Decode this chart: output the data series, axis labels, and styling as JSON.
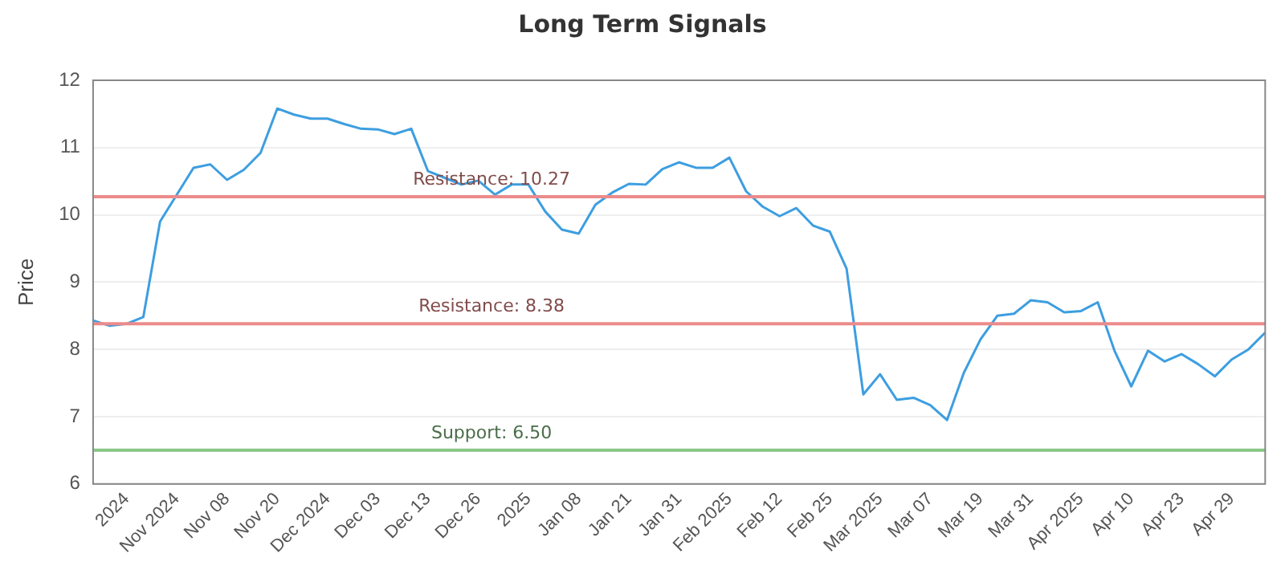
{
  "chart_data": {
    "type": "line",
    "title": "Long Term Signals",
    "ylabel": "Price",
    "categories": [
      null,
      null,
      "2024",
      null,
      null,
      "Nov 2024",
      null,
      null,
      "Nov 08",
      null,
      null,
      "Nov 20",
      null,
      null,
      "Dec 2024",
      null,
      null,
      "Dec 03",
      null,
      null,
      "Dec 13",
      null,
      null,
      "Dec 26",
      null,
      null,
      "2025",
      null,
      null,
      "Jan 08",
      null,
      null,
      "Jan 21",
      null,
      null,
      "Jan 31",
      null,
      null,
      "Feb 2025",
      null,
      null,
      "Feb 12",
      null,
      null,
      "Feb 25",
      null,
      null,
      "Mar 2025",
      null,
      null,
      "Mar 07",
      null,
      null,
      "Mar 19",
      null,
      null,
      "Mar 31",
      null,
      null,
      "Apr 2025",
      null,
      null,
      "Apr 10",
      null,
      null,
      "Apr 23",
      null,
      null,
      "Apr 29",
      null,
      null
    ],
    "series": [
      {
        "color": "#3d9ee0",
        "values": [
          8.43,
          8.35,
          8.38,
          8.48,
          9.9,
          10.3,
          10.7,
          10.75,
          10.52,
          10.67,
          10.92,
          11.58,
          11.49,
          11.43,
          11.43,
          11.35,
          11.28,
          11.27,
          11.2,
          11.28,
          10.65,
          10.55,
          10.45,
          10.51,
          10.3,
          10.45,
          10.45,
          10.05,
          9.78,
          9.72,
          10.15,
          10.33,
          10.46,
          10.45,
          10.68,
          10.78,
          10.7,
          10.7,
          10.85,
          10.35,
          10.12,
          9.98,
          10.1,
          9.84,
          9.75,
          9.2,
          7.33,
          7.63,
          7.25,
          7.28,
          7.17,
          6.95,
          7.65,
          8.15,
          8.5,
          8.53,
          8.73,
          8.7,
          8.55,
          8.57,
          8.7,
          7.98,
          7.45,
          7.98,
          7.82,
          7.93,
          7.78,
          7.6,
          7.85,
          8.0,
          8.25
        ]
      }
    ],
    "ylim": [
      6,
      12
    ],
    "yticks": [
      6,
      7,
      8,
      9,
      10,
      11,
      12
    ],
    "grid": "y",
    "marker": "none",
    "line_style": "solid",
    "ref_lines": [
      {
        "axis": "y",
        "value": 10.27,
        "label": "Resistance: 10.27",
        "color": "#ec8a8a"
      },
      {
        "axis": "y",
        "value": 8.38,
        "label": "Resistance: 8.38",
        "color": "#ec8a8a"
      },
      {
        "axis": "y",
        "value": 6.5,
        "label": "Support: 6.50",
        "color": "#86c786"
      }
    ]
  }
}
